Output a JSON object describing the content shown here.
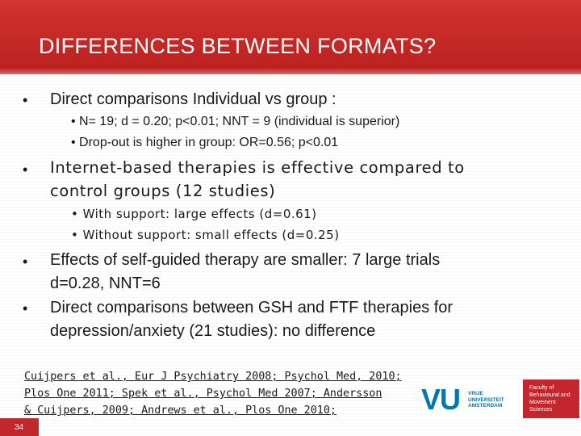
{
  "slide": {
    "title": "DIFFERENCES BETWEEN FORMATS?",
    "page_number": "34"
  },
  "bullets": {
    "b1": {
      "text": "Direct comparisons Individual vs group :",
      "subs": [
        "N= 19; d = 0.20; p<0.01; NNT = 9 (individual is superior)",
        "Drop-out is higher in group: OR=0.56; p<0.01"
      ]
    },
    "b2": {
      "line1": "Internet-based therapies is effective compared to",
      "line2": "control groups (12 studies)",
      "subs": [
        "With support: large effects (d=0.61)",
        "Without support: small effects (d=0.25)"
      ]
    },
    "b3": {
      "line1": "Effects of self-guided therapy are smaller: 7 large trials",
      "line2": "d=0.28, NNT=6"
    },
    "b4": {
      "line1": "Direct comparisons between GSH and FTF therapies for",
      "line2": "depression/anxiety (21 studies): no difference"
    }
  },
  "references": [
    "Cuijpers et al., Eur J Psychiatry 2008; Psychol Med, 2010;",
    "Plos One 2011; Spek et al., Psychol Med 2007; Andersson",
    "& Cuijpers, 2009; Andrews et al., Plos One 2010;"
  ],
  "logos": {
    "vu_mark": "VU",
    "vu_lines": [
      "VRIJE",
      "UNIVERSITEIT",
      "AMSTERDAM"
    ],
    "faculty_lines": [
      "Faculty of",
      "Behavioural and",
      "Movement Sciences"
    ],
    "vu_color": "#0077b3",
    "faculty_color": "#c4262e",
    "header_color": "#c22a28"
  }
}
